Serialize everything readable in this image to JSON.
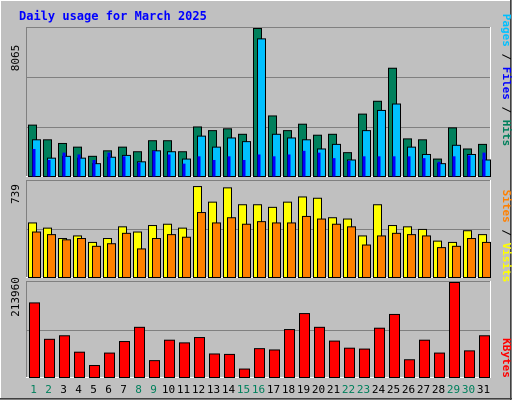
{
  "title": "Daily usage for March 2025",
  "colors": {
    "background": "#c0c0c0",
    "title": "#0000ff",
    "hits": "#00805c",
    "files": "#00c0ff",
    "pages": "#00c0ff",
    "pages_inner": "#0000ff",
    "visits": "#ffff00",
    "sites": "#ff8000",
    "kbytes": "#ff0000",
    "weekend_day": "#00805c",
    "weekday": "#000000",
    "divider": "#ffffff"
  },
  "chart_data": [
    {
      "type": "bar",
      "panel": "hits-files-pages",
      "ymax_label": "8065",
      "ylim": [
        0,
        8065
      ],
      "legend": {
        "hits": "Hits",
        "files": "Files",
        "pages": "Pages",
        "sep": " / "
      },
      "categories": [
        "1",
        "2",
        "3",
        "4",
        "5",
        "6",
        "7",
        "8",
        "9",
        "10",
        "11",
        "12",
        "13",
        "14",
        "15",
        "16",
        "17",
        "18",
        "19",
        "20",
        "21",
        "22",
        "23",
        "24",
        "25",
        "26",
        "27",
        "28",
        "29",
        "30",
        "31"
      ],
      "series": [
        {
          "name": "Hits",
          "values": [
            2800,
            2000,
            1800,
            1600,
            1100,
            1400,
            1600,
            1350,
            1950,
            1950,
            1350,
            2700,
            2500,
            2600,
            2300,
            8065,
            3300,
            2500,
            2850,
            2250,
            2300,
            1300,
            3400,
            4100,
            5900,
            2050,
            2000,
            950,
            2650,
            1500,
            1750
          ]
        },
        {
          "name": "Files",
          "values": [
            2000,
            1000,
            1100,
            1000,
            700,
            1050,
            1150,
            800,
            1400,
            1350,
            950,
            2200,
            1600,
            2100,
            1900,
            7500,
            2300,
            2100,
            2000,
            1500,
            1750,
            900,
            2500,
            3600,
            3950,
            1600,
            1200,
            700,
            1700,
            1200,
            900
          ]
        },
        {
          "name": "Pages",
          "values": [
            1500,
            900,
            1300,
            1200,
            900,
            1300,
            1100,
            750,
            1400,
            1200,
            700,
            1100,
            900,
            1100,
            900,
            1200,
            1100,
            1200,
            1400,
            1300,
            1000,
            850,
            1100,
            1100,
            1100,
            1100,
            1000,
            800,
            1100,
            1150,
            1300
          ]
        }
      ]
    },
    {
      "type": "bar",
      "panel": "visits-sites",
      "ymax_label": "739",
      "ylim": [
        0,
        739
      ],
      "legend": {
        "visits": "Visits",
        "sites": "Sites",
        "sep": " / "
      },
      "categories": [
        "1",
        "2",
        "3",
        "4",
        "5",
        "6",
        "7",
        "8",
        "9",
        "10",
        "11",
        "12",
        "13",
        "14",
        "15",
        "16",
        "17",
        "18",
        "19",
        "20",
        "21",
        "22",
        "23",
        "24",
        "25",
        "26",
        "27",
        "28",
        "29",
        "30",
        "31"
      ],
      "series": [
        {
          "name": "Visits",
          "values": [
            420,
            380,
            300,
            320,
            270,
            300,
            390,
            350,
            400,
            410,
            380,
            700,
            580,
            690,
            560,
            560,
            540,
            580,
            620,
            610,
            460,
            450,
            320,
            560,
            400,
            390,
            370,
            280,
            270,
            360,
            330
          ]
        },
        {
          "name": "Sites",
          "values": [
            350,
            330,
            290,
            300,
            240,
            260,
            340,
            220,
            300,
            330,
            310,
            500,
            420,
            460,
            410,
            430,
            420,
            420,
            470,
            450,
            410,
            390,
            250,
            320,
            340,
            330,
            320,
            230,
            240,
            300,
            270
          ]
        }
      ]
    },
    {
      "type": "bar",
      "panel": "kbytes",
      "ymax_label": "213960",
      "ylim": [
        0,
        213960
      ],
      "legend": {
        "kbytes": "KBytes"
      },
      "categories": [
        "1",
        "2",
        "3",
        "4",
        "5",
        "6",
        "7",
        "8",
        "9",
        "10",
        "11",
        "12",
        "13",
        "14",
        "15",
        "16",
        "17",
        "18",
        "19",
        "20",
        "21",
        "22",
        "23",
        "24",
        "25",
        "26",
        "27",
        "28",
        "29",
        "30",
        "31"
      ],
      "series": [
        {
          "name": "KBytes",
          "values": [
            168000,
            86000,
            94000,
            57000,
            27000,
            55000,
            81000,
            113000,
            38000,
            84000,
            78000,
            90000,
            53000,
            52000,
            19000,
            65000,
            62000,
            108000,
            144000,
            113000,
            82000,
            66000,
            64000,
            111000,
            142000,
            40000,
            84000,
            55000,
            213960,
            60000,
            94000
          ]
        }
      ]
    }
  ]
}
